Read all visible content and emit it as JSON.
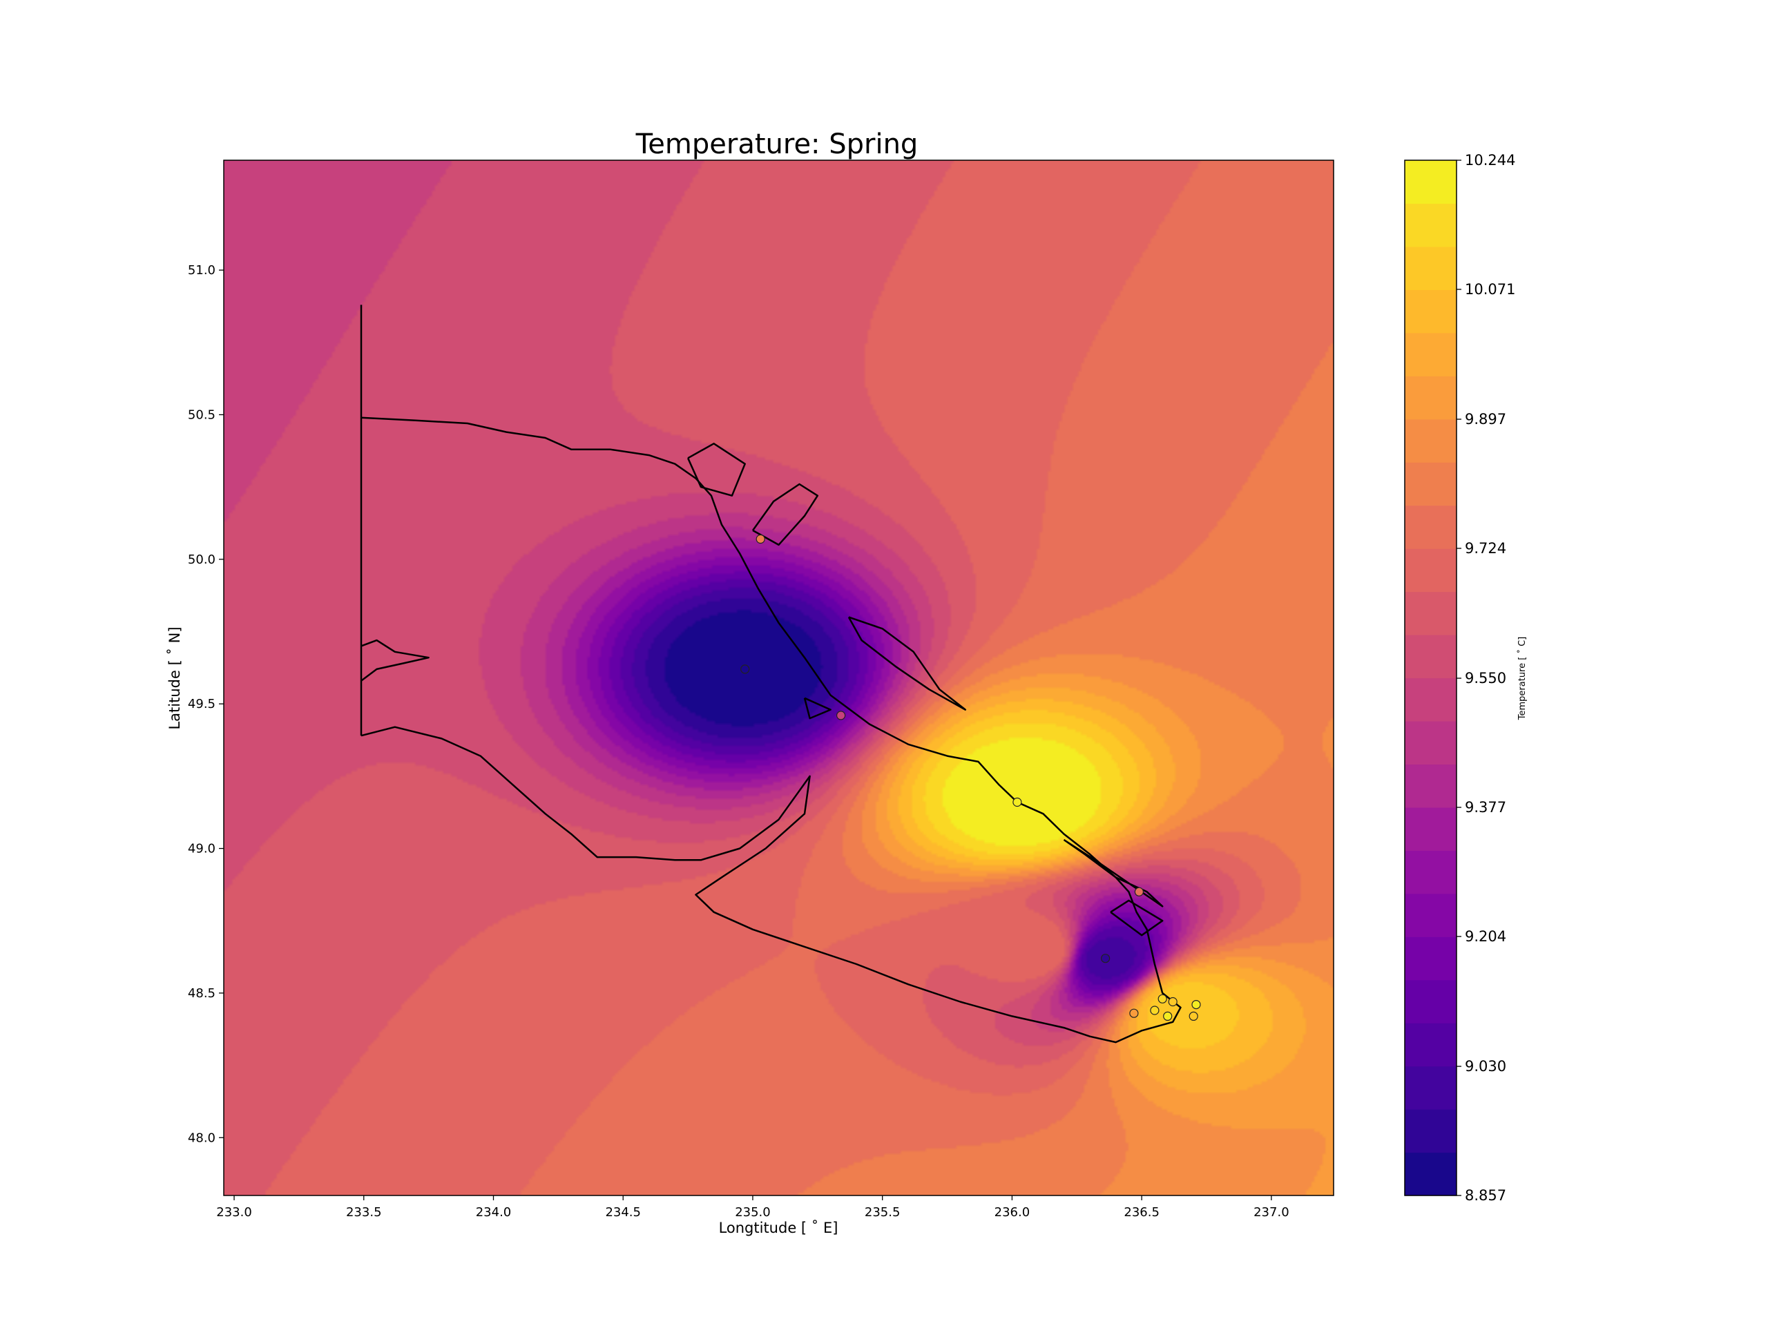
{
  "chart_data": {
    "type": "heatmap",
    "title": "Temperature: Spring",
    "xlabel": "Longtitude [$^\\circ E$]",
    "ylabel": "Latitude [$^\\circ N$]",
    "xlabel_display": "Longtitude [ ˚ E]",
    "ylabel_display": "Latitude [ ˚ N]",
    "xlim": [
      232.96,
      237.24
    ],
    "ylim": [
      47.8,
      51.38
    ],
    "xticks": [
      233.0,
      233.5,
      234.0,
      234.5,
      235.0,
      235.5,
      236.0,
      236.5,
      237.0
    ],
    "xtick_labels": [
      "233.0",
      "233.5",
      "234.0",
      "234.5",
      "235.0",
      "235.5",
      "236.0",
      "236.5",
      "237.0"
    ],
    "yticks": [
      48.0,
      48.5,
      49.0,
      49.5,
      50.0,
      50.5,
      51.0
    ],
    "ytick_labels": [
      "48.0",
      "48.5",
      "49.0",
      "49.5",
      "50.0",
      "50.5",
      "51.0"
    ],
    "colorbar": {
      "label": "Temperature [$^\\circ C$]",
      "label_display": "Temperature [ ˚ C]",
      "min": 8.857,
      "max": 10.244,
      "levels": 24,
      "tick_values": [
        8.857,
        9.03,
        9.204,
        9.377,
        9.55,
        9.724,
        9.897,
        10.071,
        10.244
      ],
      "tick_labels": [
        "8.857",
        "9.030",
        "9.204",
        "9.377",
        "9.550",
        "9.724",
        "9.897",
        "10.071",
        "10.244"
      ],
      "colormap": "plasma",
      "colors": [
        "#0d0887",
        "#2a0593",
        "#41049d",
        "#5601a4",
        "#6a00a8",
        "#7e03a8",
        "#8f0da4",
        "#a01a9c",
        "#b12a90",
        "#bf3984",
        "#cc4778",
        "#d6556d",
        "#e16462",
        "#e97158",
        "#f1834b",
        "#f89540",
        "#fca636",
        "#feb72d",
        "#fdca26",
        "#f9dc24",
        "#f0f921"
      ]
    },
    "field_centers": [
      {
        "lon": 234.97,
        "lat": 49.62,
        "value": 8.86
      },
      {
        "lon": 236.36,
        "lat": 48.62,
        "value": 9.0
      },
      {
        "lon": 236.04,
        "lat": 49.17,
        "value": 10.24
      },
      {
        "lon": 236.65,
        "lat": 48.45,
        "value": 10.1
      },
      {
        "lon": 236.12,
        "lat": 48.65,
        "value": 9.72
      }
    ],
    "stations": [
      {
        "lon": 234.97,
        "lat": 49.62,
        "value": 8.86
      },
      {
        "lon": 236.36,
        "lat": 48.62,
        "value": 8.95
      },
      {
        "lon": 236.02,
        "lat": 49.16,
        "value": 10.2
      },
      {
        "lon": 236.49,
        "lat": 48.85,
        "value": 9.75
      },
      {
        "lon": 236.47,
        "lat": 48.43,
        "value": 9.95
      },
      {
        "lon": 236.58,
        "lat": 48.48,
        "value": 10.15
      },
      {
        "lon": 236.62,
        "lat": 48.47,
        "value": 10.1
      },
      {
        "lon": 236.6,
        "lat": 48.42,
        "value": 10.2
      },
      {
        "lon": 236.7,
        "lat": 48.42,
        "value": 10.12
      },
      {
        "lon": 236.71,
        "lat": 48.46,
        "value": 10.2
      },
      {
        "lon": 236.55,
        "lat": 48.44,
        "value": 10.15
      },
      {
        "lon": 235.34,
        "lat": 49.46,
        "value": 9.5
      },
      {
        "lon": 235.03,
        "lat": 50.07,
        "value": 9.8
      }
    ],
    "coastline": [
      [
        [
          233.49,
          49.39
        ],
        [
          233.49,
          50.88
        ]
      ],
      [
        [
          233.49,
          50.49
        ],
        [
          233.7,
          50.48
        ],
        [
          233.9,
          50.47
        ],
        [
          234.05,
          50.44
        ],
        [
          234.2,
          50.42
        ],
        [
          234.3,
          50.38
        ],
        [
          234.45,
          50.38
        ],
        [
          234.6,
          50.36
        ],
        [
          234.7,
          50.33
        ],
        [
          234.78,
          50.28
        ],
        [
          234.84,
          50.22
        ],
        [
          234.88,
          50.12
        ],
        [
          234.95,
          50.02
        ],
        [
          235.02,
          49.9
        ],
        [
          235.1,
          49.78
        ],
        [
          235.2,
          49.66
        ],
        [
          235.3,
          49.53
        ],
        [
          235.45,
          49.43
        ],
        [
          235.6,
          49.36
        ],
        [
          235.75,
          49.32
        ],
        [
          235.87,
          49.3
        ],
        [
          235.95,
          49.22
        ],
        [
          236.02,
          49.16
        ],
        [
          236.12,
          49.12
        ],
        [
          236.2,
          49.05
        ],
        [
          236.3,
          48.98
        ],
        [
          236.4,
          48.9
        ],
        [
          236.45,
          48.85
        ],
        [
          236.48,
          48.78
        ],
        [
          236.52,
          48.72
        ],
        [
          236.55,
          48.6
        ],
        [
          236.58,
          48.5
        ],
        [
          236.65,
          48.45
        ],
        [
          236.62,
          48.4
        ],
        [
          236.5,
          48.37
        ],
        [
          236.4,
          48.33
        ],
        [
          236.3,
          48.35
        ],
        [
          236.2,
          48.38
        ],
        [
          236.0,
          48.42
        ],
        [
          235.8,
          48.47
        ],
        [
          235.6,
          48.53
        ],
        [
          235.4,
          48.6
        ],
        [
          235.2,
          48.66
        ],
        [
          235.0,
          48.72
        ],
        [
          234.85,
          48.78
        ],
        [
          234.78,
          48.84
        ],
        [
          234.88,
          48.9
        ],
        [
          235.05,
          49.0
        ],
        [
          235.2,
          49.12
        ],
        [
          235.22,
          49.25
        ],
        [
          235.1,
          49.1
        ],
        [
          234.95,
          49.0
        ],
        [
          234.8,
          48.96
        ],
        [
          234.7,
          48.96
        ],
        [
          234.55,
          48.97
        ],
        [
          234.4,
          48.97
        ],
        [
          234.3,
          49.05
        ],
        [
          234.2,
          49.12
        ],
        [
          234.1,
          49.2
        ],
        [
          233.95,
          49.32
        ],
        [
          233.8,
          49.38
        ],
        [
          233.62,
          49.42
        ],
        [
          233.49,
          49.39
        ]
      ],
      [
        [
          233.49,
          49.7
        ],
        [
          233.55,
          49.72
        ],
        [
          233.62,
          49.68
        ],
        [
          233.75,
          49.66
        ],
        [
          233.65,
          49.64
        ],
        [
          233.55,
          49.62
        ],
        [
          233.49,
          49.58
        ]
      ],
      [
        [
          235.37,
          49.8
        ],
        [
          235.5,
          49.76
        ],
        [
          235.62,
          49.68
        ],
        [
          235.72,
          49.55
        ],
        [
          235.82,
          49.48
        ],
        [
          235.68,
          49.55
        ],
        [
          235.55,
          49.63
        ],
        [
          235.42,
          49.72
        ],
        [
          235.37,
          49.8
        ]
      ],
      [
        [
          235.2,
          49.52
        ],
        [
          235.3,
          49.48
        ],
        [
          235.22,
          49.45
        ],
        [
          235.2,
          49.52
        ]
      ],
      [
        [
          234.75,
          50.35
        ],
        [
          234.85,
          50.4
        ],
        [
          234.97,
          50.33
        ],
        [
          234.92,
          50.22
        ],
        [
          234.8,
          50.25
        ],
        [
          234.75,
          50.35
        ]
      ],
      [
        [
          235.0,
          50.1
        ],
        [
          235.08,
          50.2
        ],
        [
          235.18,
          50.26
        ],
        [
          235.25,
          50.22
        ],
        [
          235.2,
          50.15
        ],
        [
          235.1,
          50.05
        ],
        [
          235.0,
          50.1
        ]
      ],
      [
        [
          236.2,
          49.03
        ],
        [
          236.28,
          48.98
        ],
        [
          236.4,
          48.9
        ],
        [
          236.52,
          48.85
        ],
        [
          236.58,
          48.8
        ],
        [
          236.45,
          48.88
        ],
        [
          236.32,
          48.96
        ],
        [
          236.2,
          49.03
        ]
      ],
      [
        [
          236.38,
          48.78
        ],
        [
          236.45,
          48.82
        ],
        [
          236.58,
          48.75
        ],
        [
          236.5,
          48.7
        ],
        [
          236.38,
          48.78
        ]
      ]
    ]
  }
}
